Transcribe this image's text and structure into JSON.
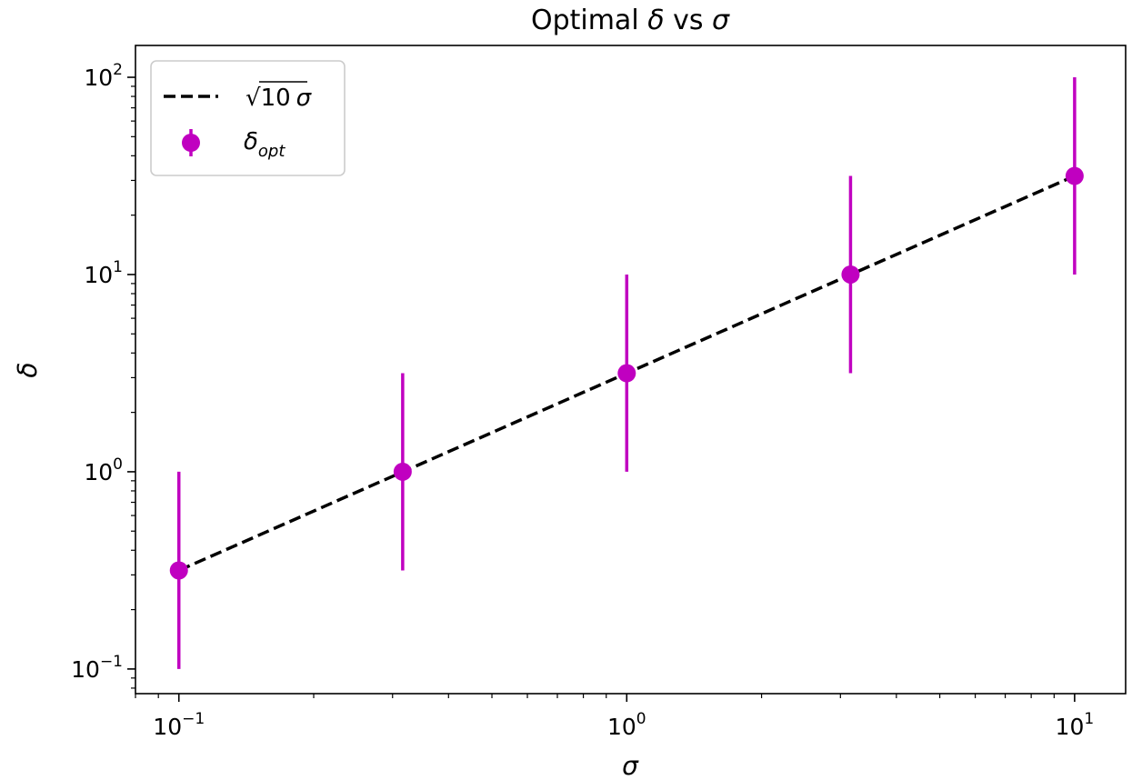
{
  "chart_data": {
    "type": "scatter",
    "title": "Optimal δ vs σ",
    "title_parts": {
      "prefix": "Optimal ",
      "sym1": "δ",
      "mid": " vs ",
      "sym2": "σ"
    },
    "xlabel": "σ",
    "ylabel": "δ",
    "xscale": "log",
    "yscale": "log",
    "xlim": [
      0.08,
      13
    ],
    "ylim": [
      0.075,
      145
    ],
    "grid": false,
    "legend_position": "upper-left",
    "x_ticks": [
      {
        "value": 0.1,
        "base": "10",
        "exp": "−1"
      },
      {
        "value": 1,
        "base": "10",
        "exp": "0"
      },
      {
        "value": 10,
        "base": "10",
        "exp": "1"
      }
    ],
    "y_ticks": [
      {
        "value": 0.1,
        "base": "10",
        "exp": "−1"
      },
      {
        "value": 1,
        "base": "10",
        "exp": "0"
      },
      {
        "value": 10,
        "base": "10",
        "exp": "1"
      },
      {
        "value": 100,
        "base": "10",
        "exp": "2"
      }
    ],
    "series": [
      {
        "kind": "line",
        "style": "dashed",
        "color": "#000000",
        "legend_parts": {
          "root": "√",
          "radicand": "10",
          "sym": "σ"
        },
        "x": [
          0.1,
          10
        ],
        "y": [
          0.316,
          31.6
        ]
      },
      {
        "kind": "errorbar",
        "color": "#c000c0",
        "legend_parts": {
          "base": "δ",
          "sub": "opt"
        },
        "x": [
          0.1,
          0.316,
          1,
          3.16,
          10
        ],
        "y": [
          0.316,
          1.0,
          3.16,
          10.0,
          31.6
        ],
        "y_low": [
          0.1,
          0.316,
          1.0,
          3.16,
          10.0
        ],
        "y_high": [
          1.0,
          3.16,
          10.0,
          31.6,
          100.0
        ]
      }
    ]
  }
}
